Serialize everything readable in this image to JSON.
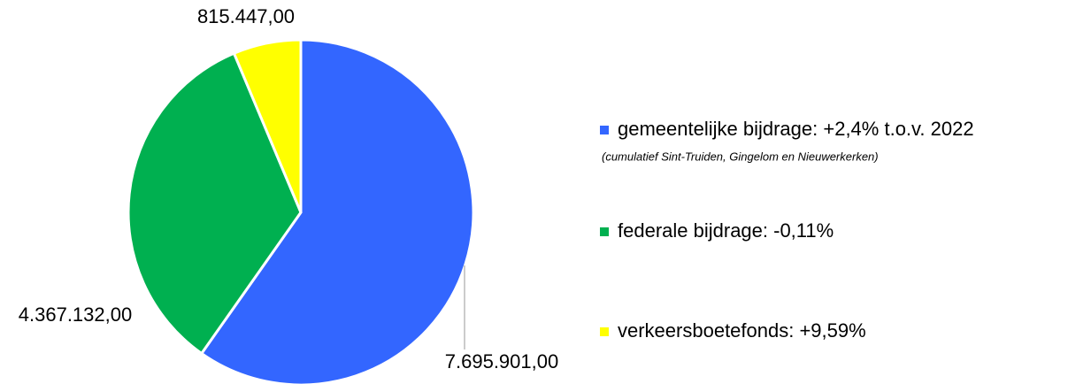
{
  "chart_data": {
    "type": "pie",
    "categories": [
      "gemeentelijke bijdrage: +2,4%  t.o.v. 2022",
      "federale bijdrage: -0,11%",
      "verkeersboetefonds: +9,59%"
    ],
    "values": [
      7695901,
      4367132,
      815447
    ],
    "value_labels": [
      "7.695.901,00",
      "4.367.132,00",
      "815.447,00"
    ],
    "colors": [
      "#3366ff",
      "#00b050",
      "#ffff00"
    ],
    "annotation": "(cumulatief Sint-Truiden, Gingelom en Nieuwerkerken)"
  }
}
